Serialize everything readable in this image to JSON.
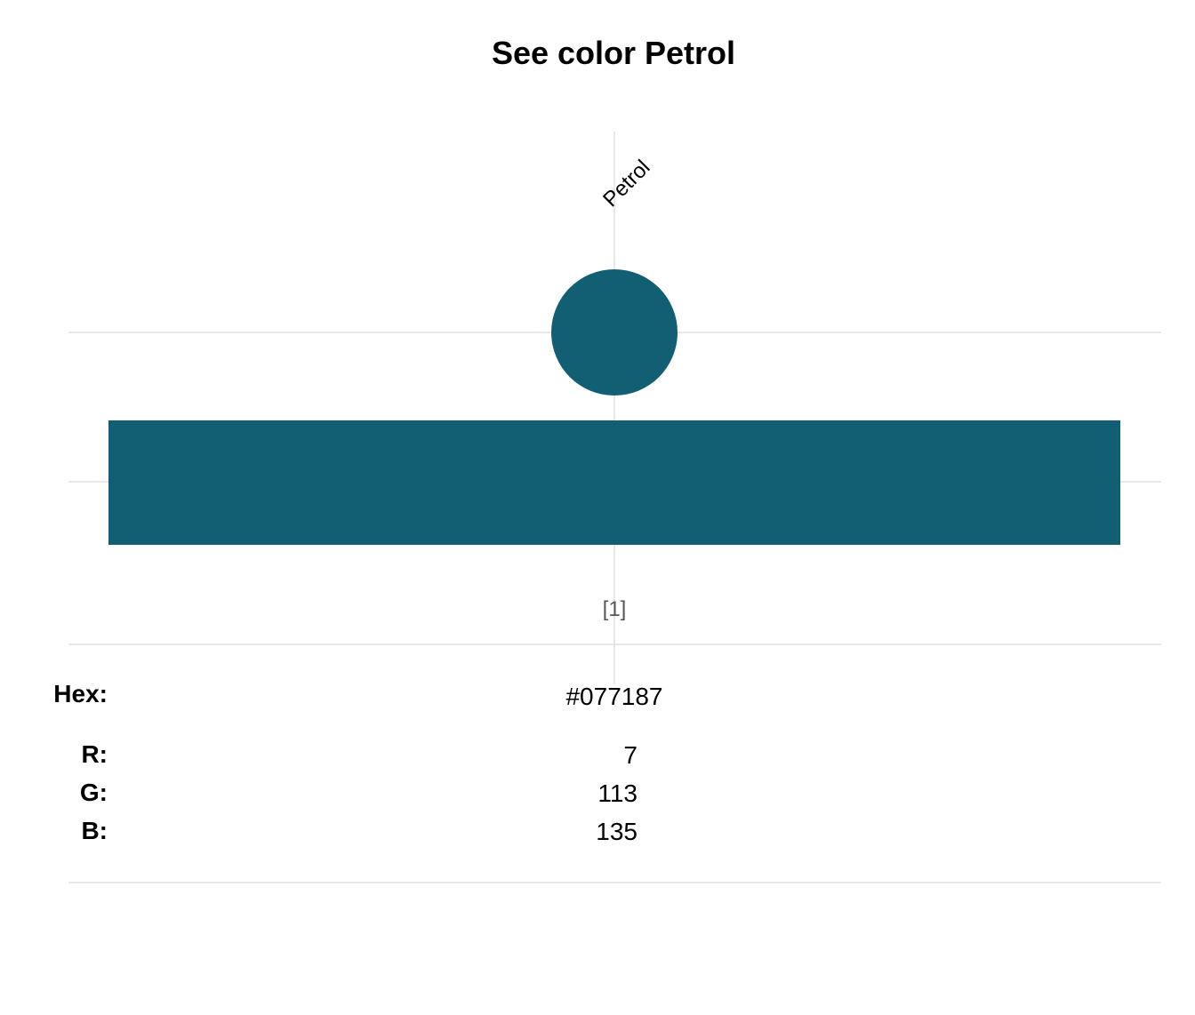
{
  "chart_data": {
    "type": "table",
    "title": "See color Petrol",
    "colors": [
      {
        "name": "Petrol",
        "index_label": "[1]",
        "hex": "#077187",
        "r": "7",
        "g": "113",
        "b": "135",
        "fill": "#125F74"
      }
    ],
    "row_labels": {
      "hex": "Hex:",
      "r": "R:",
      "g": "G:",
      "b": "B:"
    },
    "grid": true
  }
}
